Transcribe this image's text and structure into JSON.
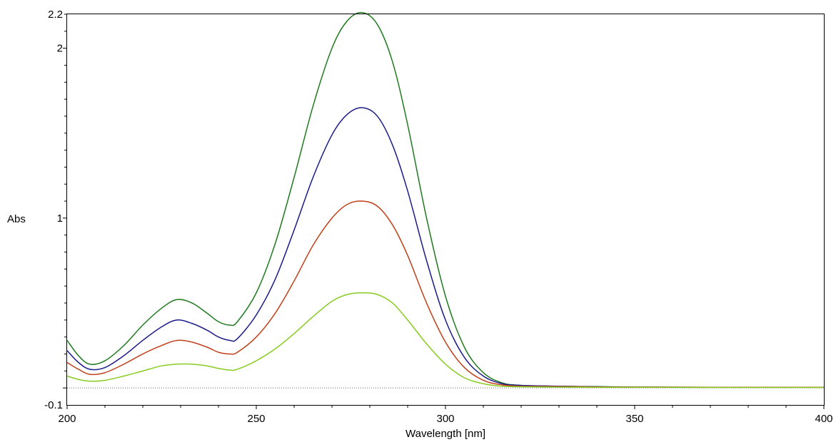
{
  "chart_data": {
    "type": "line",
    "title": "",
    "xlabel": "Wavelength [nm]",
    "ylabel": "Abs",
    "xlim": [
      200,
      400
    ],
    "ylim": [
      -0.1,
      2.2
    ],
    "x_ticks": [
      200,
      250,
      300,
      350,
      400
    ],
    "x_tick_labels": [
      "200",
      "250",
      "300",
      "350",
      "400"
    ],
    "y_ticks": [
      -0.1,
      1,
      2,
      2.2
    ],
    "y_tick_labels": [
      "-0.1",
      "1",
      "2",
      "2.2"
    ],
    "grid": false,
    "baseline": 0,
    "x": [
      200,
      203,
      206,
      210,
      215,
      220,
      225,
      229,
      233,
      237,
      240,
      243,
      245,
      250,
      255,
      260,
      265,
      270,
      274,
      278,
      282,
      286,
      290,
      295,
      300,
      305,
      310,
      315,
      320,
      330,
      340,
      350,
      370,
      400
    ],
    "series": [
      {
        "color": "#1f7a1f",
        "values": [
          0.28,
          0.19,
          0.14,
          0.16,
          0.25,
          0.37,
          0.47,
          0.52,
          0.5,
          0.44,
          0.39,
          0.37,
          0.39,
          0.56,
          0.85,
          1.24,
          1.66,
          2.0,
          2.16,
          2.21,
          2.14,
          1.92,
          1.55,
          1.0,
          0.54,
          0.24,
          0.09,
          0.03,
          0.015,
          0.01,
          0.008,
          0.005,
          0.004,
          0.004
        ]
      },
      {
        "color": "#1a1a8c",
        "values": [
          0.22,
          0.15,
          0.11,
          0.12,
          0.19,
          0.28,
          0.36,
          0.4,
          0.38,
          0.34,
          0.3,
          0.28,
          0.29,
          0.43,
          0.64,
          0.93,
          1.24,
          1.49,
          1.61,
          1.65,
          1.6,
          1.43,
          1.16,
          0.75,
          0.4,
          0.18,
          0.07,
          0.025,
          0.015,
          0.01,
          0.007,
          0.005,
          0.004,
          0.004
        ]
      },
      {
        "color": "#c0401a",
        "values": [
          0.15,
          0.11,
          0.08,
          0.09,
          0.14,
          0.2,
          0.25,
          0.28,
          0.27,
          0.24,
          0.21,
          0.2,
          0.21,
          0.3,
          0.44,
          0.63,
          0.84,
          1.0,
          1.08,
          1.1,
          1.07,
          0.96,
          0.78,
          0.5,
          0.27,
          0.12,
          0.045,
          0.018,
          0.01,
          0.008,
          0.006,
          0.005,
          0.004,
          0.004
        ]
      },
      {
        "color": "#88cc22",
        "values": [
          0.07,
          0.05,
          0.04,
          0.045,
          0.07,
          0.1,
          0.13,
          0.14,
          0.14,
          0.13,
          0.115,
          0.105,
          0.11,
          0.16,
          0.23,
          0.32,
          0.42,
          0.51,
          0.55,
          0.56,
          0.55,
          0.5,
          0.4,
          0.26,
          0.14,
          0.06,
          0.025,
          0.01,
          0.007,
          0.005,
          0.004,
          0.004,
          0.003,
          0.003
        ]
      }
    ]
  }
}
